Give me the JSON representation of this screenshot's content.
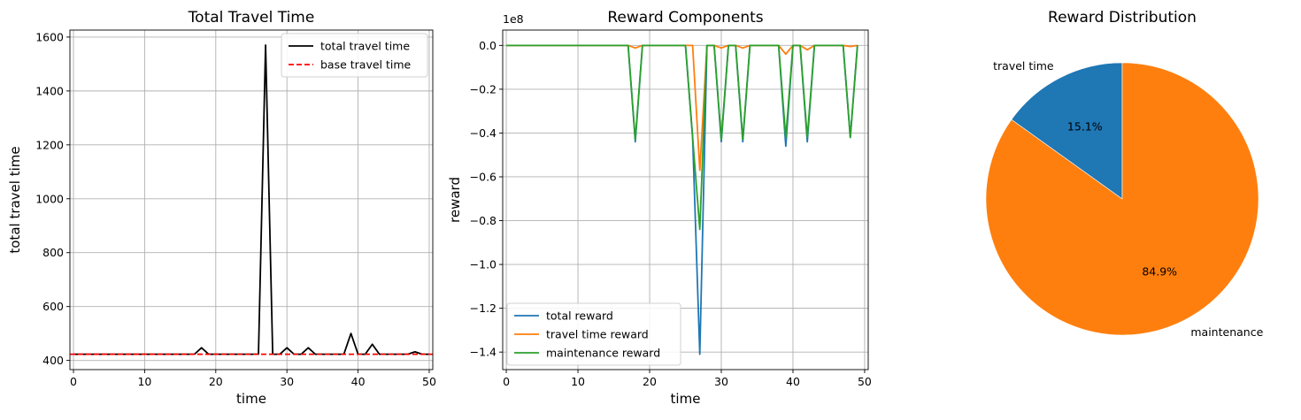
{
  "chart_data": [
    {
      "type": "line",
      "title": "Total Travel Time",
      "xlabel": "time",
      "ylabel": "total travel time",
      "xlim": [
        -0.5,
        50.5
      ],
      "ylim": [
        366,
        1626
      ],
      "xticks": [
        0,
        10,
        20,
        30,
        40,
        50
      ],
      "yticks": [
        400,
        600,
        800,
        1000,
        1200,
        1400,
        1600
      ],
      "grid": true,
      "legend_position": "top-right",
      "series": [
        {
          "name": "total travel time",
          "color": "#000000",
          "style": "solid",
          "x": [
            0,
            1,
            2,
            3,
            4,
            5,
            6,
            7,
            8,
            9,
            10,
            11,
            12,
            13,
            14,
            15,
            16,
            17,
            18,
            19,
            20,
            21,
            22,
            23,
            24,
            25,
            26,
            27,
            28,
            29,
            30,
            31,
            32,
            33,
            34,
            35,
            36,
            37,
            38,
            39,
            40,
            41,
            42,
            43,
            44,
            45,
            46,
            47,
            48,
            49,
            50
          ],
          "y": [
            423,
            423,
            423,
            423,
            423,
            423,
            423,
            423,
            423,
            423,
            423,
            423,
            423,
            423,
            423,
            423,
            423,
            423,
            447,
            423,
            423,
            423,
            423,
            423,
            423,
            423,
            423,
            1570,
            423,
            423,
            447,
            423,
            423,
            447,
            423,
            423,
            423,
            423,
            423,
            500,
            423,
            423,
            460,
            423,
            423,
            423,
            423,
            423,
            432,
            423,
            423
          ]
        },
        {
          "name": "base travel time",
          "color": "#ff0000",
          "style": "dashed",
          "x": [
            -0.5,
            50.5
          ],
          "y": [
            423,
            423
          ]
        }
      ]
    },
    {
      "type": "line",
      "title": "Reward Components",
      "xlabel": "time",
      "ylabel": "reward",
      "y_scale_label": "1e8",
      "xlim": [
        -0.5,
        50.5
      ],
      "ylim": [
        -1.48,
        0.07
      ],
      "xticks": [
        0,
        10,
        20,
        30,
        40,
        50
      ],
      "yticks": [
        0.0,
        -0.2,
        -0.4,
        -0.6,
        -0.8,
        -1.0,
        -1.2,
        -1.4
      ],
      "ytick_labels": [
        "0.0",
        "−0.2",
        "−0.4",
        "−0.6",
        "−0.8",
        "−1.0",
        "−1.2",
        "−1.4"
      ],
      "grid": true,
      "legend_position": "bottom-left",
      "series": [
        {
          "name": "total reward",
          "color": "#1f77b4",
          "x": [
            0,
            1,
            2,
            3,
            4,
            5,
            6,
            7,
            8,
            9,
            10,
            11,
            12,
            13,
            14,
            15,
            16,
            17,
            18,
            19,
            20,
            21,
            22,
            23,
            24,
            25,
            26,
            27,
            28,
            29,
            30,
            31,
            32,
            33,
            34,
            35,
            36,
            37,
            38,
            39,
            40,
            41,
            42,
            43,
            44,
            45,
            46,
            47,
            48,
            49
          ],
          "y": [
            0,
            0,
            0,
            0,
            0,
            0,
            0,
            0,
            0,
            0,
            0,
            0,
            0,
            0,
            0,
            0,
            0,
            0,
            -0.44,
            0,
            0,
            0,
            0,
            0,
            0,
            0,
            -0.42,
            -1.41,
            0,
            0,
            -0.44,
            0,
            0,
            -0.44,
            0,
            0,
            0,
            0,
            0,
            -0.46,
            0,
            0,
            -0.44,
            0,
            0,
            0,
            0,
            0,
            -0.42,
            0
          ]
        },
        {
          "name": "travel time reward",
          "color": "#ff7f0e",
          "x": [
            0,
            1,
            2,
            3,
            4,
            5,
            6,
            7,
            8,
            9,
            10,
            11,
            12,
            13,
            14,
            15,
            16,
            17,
            18,
            19,
            20,
            21,
            22,
            23,
            24,
            25,
            26,
            27,
            28,
            29,
            30,
            31,
            32,
            33,
            34,
            35,
            36,
            37,
            38,
            39,
            40,
            41,
            42,
            43,
            44,
            45,
            46,
            47,
            48,
            49
          ],
          "y": [
            0,
            0,
            0,
            0,
            0,
            0,
            0,
            0,
            0,
            0,
            0,
            0,
            0,
            0,
            0,
            0,
            0,
            0,
            -0.012,
            0,
            0,
            0,
            0,
            0,
            0,
            0,
            0,
            -0.57,
            0,
            0,
            -0.012,
            0,
            0,
            -0.012,
            0,
            0,
            0,
            0,
            0,
            -0.04,
            0,
            0,
            -0.02,
            0,
            0,
            0,
            0,
            0,
            -0.005,
            0
          ]
        },
        {
          "name": "maintenance reward",
          "color": "#2ca02c",
          "x": [
            0,
            1,
            2,
            3,
            4,
            5,
            6,
            7,
            8,
            9,
            10,
            11,
            12,
            13,
            14,
            15,
            16,
            17,
            18,
            19,
            20,
            21,
            22,
            23,
            24,
            25,
            26,
            27,
            28,
            29,
            30,
            31,
            32,
            33,
            34,
            35,
            36,
            37,
            38,
            39,
            40,
            41,
            42,
            43,
            44,
            45,
            46,
            47,
            48,
            49
          ],
          "y": [
            0,
            0,
            0,
            0,
            0,
            0,
            0,
            0,
            0,
            0,
            0,
            0,
            0,
            0,
            0,
            0,
            0,
            0,
            -0.43,
            0,
            0,
            0,
            0,
            0,
            0,
            0,
            -0.42,
            -0.84,
            0,
            0,
            -0.43,
            0,
            0,
            -0.43,
            0,
            0,
            0,
            0,
            0,
            -0.42,
            0,
            0,
            -0.42,
            0,
            0,
            0,
            0,
            0,
            -0.42,
            0
          ]
        }
      ]
    },
    {
      "type": "pie",
      "title": "Reward Distribution",
      "start_angle_deg": 90,
      "direction": "counterclockwise",
      "slices": [
        {
          "label": "travel time",
          "value": 15.1,
          "pct_label": "15.1%",
          "color": "#1f77b4"
        },
        {
          "label": "maintenance",
          "value": 84.9,
          "pct_label": "84.9%",
          "color": "#ff7f0e"
        }
      ]
    }
  ]
}
